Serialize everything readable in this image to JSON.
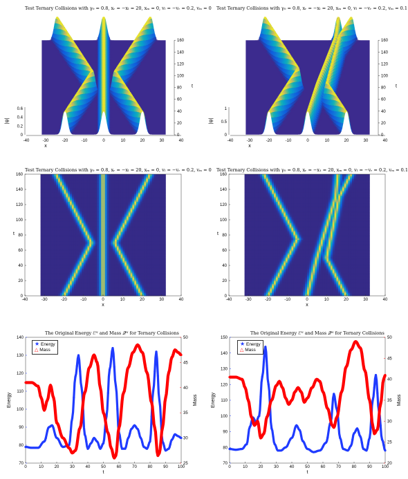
{
  "chart_data": [
    {
      "id": "surf_a",
      "type": "surface3d",
      "title": "Test Ternary Collisions with γ₀ = 0.8, xᵣ = −xₗ = 20, xₘ = 0, vₗ = −vᵣ = 0.2, vₘ = 0",
      "xlabel": "x",
      "ylabel": "t",
      "zlabel": "|ψ|",
      "xticks": [
        "-40",
        "-30",
        "-20",
        "-10",
        "0",
        "10",
        "20",
        "30",
        "40"
      ],
      "yticks": [
        "0",
        "20",
        "40",
        "60",
        "80",
        "100",
        "120",
        "140",
        "160"
      ],
      "zticks": [
        "0",
        "0.2",
        "0.4",
        "0.6"
      ]
    },
    {
      "id": "surf_b",
      "type": "surface3d",
      "title": "Test Ternary Collisions with γ₀ = 0.8, xᵣ = −xₗ = 20, xₘ = 0, vₗ = −vᵣ = 0.2, vₘ = 0.1",
      "xlabel": "x",
      "ylabel": "t",
      "zlabel": "|ψ|",
      "xticks": [
        "-40",
        "-30",
        "-20",
        "-10",
        "0",
        "10",
        "20",
        "30",
        "40"
      ],
      "yticks": [
        "0",
        "20",
        "40",
        "60",
        "80",
        "100",
        "120",
        "140",
        "160"
      ],
      "zticks": [
        "0",
        "0.5",
        "1"
      ]
    },
    {
      "id": "heat_a",
      "type": "heatmap",
      "title": "Test Ternary Collisions with γ₀ = 0.8, xᵣ = −xₗ = 20, xₘ = 0, vₗ = −vᵣ = 0.2, vₘ = 0",
      "xlabel": "x",
      "ylabel": "t",
      "xticks": [
        "-40",
        "-30",
        "-20",
        "-10",
        "0",
        "10",
        "20",
        "30",
        "40"
      ],
      "yticks": [
        "0",
        "20",
        "40",
        "60",
        "80",
        "100",
        "120",
        "140",
        "160"
      ]
    },
    {
      "id": "heat_b",
      "type": "heatmap",
      "title": "Test Ternary Collisions with γ₀ = 0.8, xᵣ = −x₁ = 20, xₘ = 0, vₗ = −vᵣ = 0.2, vₘ = 0.1",
      "xlabel": "x",
      "ylabel": "t",
      "xticks": [
        "-40",
        "-30",
        "-20",
        "-10",
        "0",
        "10",
        "20",
        "30",
        "40"
      ],
      "yticks": [
        "0",
        "20",
        "40",
        "60",
        "80",
        "100",
        "120",
        "140",
        "160"
      ]
    },
    {
      "id": "line_a",
      "type": "line",
      "title": "The Original Energy ℰᴺ and Mass 𝒬ᴺ for Ternary Collisions",
      "xlabel": "t",
      "ylabel_left": "Energy",
      "ylabel_right": "Mass",
      "xlim": [
        0,
        100
      ],
      "ylim_left": [
        70,
        140
      ],
      "ylim_right": [
        25,
        50
      ],
      "xticks": [
        "0",
        "10",
        "20",
        "30",
        "40",
        "50",
        "60",
        "70",
        "80",
        "90",
        "100"
      ],
      "yticks_left": [
        "70",
        "80",
        "90",
        "100",
        "110",
        "120",
        "130",
        "140"
      ],
      "yticks_right": [
        "25",
        "30",
        "35",
        "40",
        "45",
        "50"
      ],
      "legend": [
        "Energy",
        "Mass"
      ],
      "series": [
        {
          "name": "Energy",
          "axis": "left",
          "color": "#1f3bff",
          "points": [
            [
              0,
              79
            ],
            [
              4,
              78.5
            ],
            [
              8,
              78.5
            ],
            [
              12,
              82
            ],
            [
              15,
              90
            ],
            [
              17,
              91
            ],
            [
              20,
              84
            ],
            [
              24,
              79
            ],
            [
              28,
              80
            ],
            [
              30,
              95
            ],
            [
              32,
              118
            ],
            [
              34,
              130
            ],
            [
              36,
              112
            ],
            [
              38,
              86
            ],
            [
              40,
              78
            ],
            [
              42,
              81
            ],
            [
              44,
              84
            ],
            [
              46,
              82
            ],
            [
              48,
              78
            ],
            [
              50,
              81
            ],
            [
              52,
              96
            ],
            [
              54,
              122
            ],
            [
              56,
              134
            ],
            [
              58,
              113
            ],
            [
              60,
              87
            ],
            [
              62,
              78
            ],
            [
              64,
              78
            ],
            [
              66,
              84
            ],
            [
              68,
              89
            ],
            [
              70,
              91
            ],
            [
              72,
              89
            ],
            [
              74,
              84
            ],
            [
              76,
              79
            ],
            [
              78,
              78
            ],
            [
              80,
              82
            ],
            [
              82,
              110
            ],
            [
              84,
              132
            ],
            [
              86,
              105
            ],
            [
              88,
              82
            ],
            [
              90,
              77
            ],
            [
              92,
              78
            ],
            [
              94,
              83
            ],
            [
              96,
              86
            ],
            [
              98,
              85
            ],
            [
              100,
              84
            ]
          ]
        },
        {
          "name": "Mass",
          "axis": "right",
          "color": "#ff0000",
          "points": [
            [
              0,
              41
            ],
            [
              4,
              41
            ],
            [
              8,
              40.3
            ],
            [
              10,
              38
            ],
            [
              12,
              35.5
            ],
            [
              14,
              37.5
            ],
            [
              16,
              40.5
            ],
            [
              18,
              38
            ],
            [
              20,
              33
            ],
            [
              24,
              30
            ],
            [
              28,
              28
            ],
            [
              30,
              27
            ],
            [
              32,
              27.5
            ],
            [
              35,
              32
            ],
            [
              38,
              39
            ],
            [
              41,
              44
            ],
            [
              44,
              46.5
            ],
            [
              46,
              45
            ],
            [
              48,
              40
            ],
            [
              50,
              35
            ],
            [
              53,
              31
            ],
            [
              55,
              28
            ],
            [
              57,
              26
            ],
            [
              58,
              26.5
            ],
            [
              60,
              32
            ],
            [
              63,
              39
            ],
            [
              66,
              44
            ],
            [
              69,
              47
            ],
            [
              72,
              48.5
            ],
            [
              75,
              47
            ],
            [
              78,
              43
            ],
            [
              81,
              37
            ],
            [
              83,
              32
            ],
            [
              85,
              26.5
            ],
            [
              86,
              27
            ],
            [
              88,
              32
            ],
            [
              90,
              38
            ],
            [
              92,
              43
            ],
            [
              94,
              46
            ],
            [
              96,
              47.5
            ],
            [
              98,
              47
            ],
            [
              100,
              46.5
            ]
          ]
        }
      ]
    },
    {
      "id": "line_b",
      "type": "line",
      "title": "The Original Energy ℰᴺ and Mass 𝒬ᴺ for Ternary Collisions",
      "xlabel": "t",
      "ylabel_left": "Energy",
      "ylabel_right": "Mass",
      "xlim": [
        0,
        100
      ],
      "ylim_left": [
        70,
        150
      ],
      "ylim_right": [
        20,
        50
      ],
      "xticks": [
        "0",
        "10",
        "20",
        "30",
        "40",
        "50",
        "60",
        "70",
        "80",
        "90",
        "100"
      ],
      "yticks_left": [
        "70",
        "80",
        "90",
        "100",
        "110",
        "120",
        "130",
        "140",
        "150"
      ],
      "yticks_right": [
        "20",
        "25",
        "30",
        "35",
        "40",
        "45",
        "50"
      ],
      "legend": [
        "Energy",
        "Mass"
      ],
      "series": [
        {
          "name": "Energy",
          "axis": "left",
          "color": "#1f3bff",
          "points": [
            [
              0,
              79
            ],
            [
              4,
              78.5
            ],
            [
              8,
              79
            ],
            [
              11,
              82
            ],
            [
              13,
              93
            ],
            [
              15,
              99
            ],
            [
              17,
              96
            ],
            [
              19,
              100
            ],
            [
              21,
              125
            ],
            [
              23,
              144
            ],
            [
              25,
              120
            ],
            [
              27,
              92
            ],
            [
              29,
              82
            ],
            [
              31,
              78
            ],
            [
              33,
              78
            ],
            [
              36,
              80
            ],
            [
              40,
              86
            ],
            [
              43,
              94
            ],
            [
              45,
              91
            ],
            [
              47,
              84
            ],
            [
              50,
              79
            ],
            [
              54,
              77
            ],
            [
              58,
              78
            ],
            [
              62,
              83
            ],
            [
              65,
              96
            ],
            [
              67,
              114
            ],
            [
              69,
              104
            ],
            [
              71,
              86
            ],
            [
              73,
              79
            ],
            [
              76,
              78
            ],
            [
              78,
              81
            ],
            [
              80,
              89
            ],
            [
              82,
              92
            ],
            [
              84,
              87
            ],
            [
              86,
              79
            ],
            [
              88,
              78
            ],
            [
              90,
              86
            ],
            [
              92,
              110
            ],
            [
              94,
              126
            ],
            [
              96,
              103
            ],
            [
              98,
              85
            ],
            [
              100,
              78
            ]
          ]
        },
        {
          "name": "Mass",
          "axis": "right",
          "color": "#ff0000",
          "points": [
            [
              0,
              40.5
            ],
            [
              4,
              40.5
            ],
            [
              8,
              40
            ],
            [
              10,
              38
            ],
            [
              12,
              35
            ],
            [
              14,
              31
            ],
            [
              16,
              29
            ],
            [
              18,
              30
            ],
            [
              20,
              26
            ],
            [
              22,
              27
            ],
            [
              24,
              31
            ],
            [
              27,
              35
            ],
            [
              30,
              38.5
            ],
            [
              32,
              39.5
            ],
            [
              34,
              38
            ],
            [
              36,
              35.5
            ],
            [
              38,
              34
            ],
            [
              40,
              35
            ],
            [
              42,
              37
            ],
            [
              44,
              38
            ],
            [
              46,
              37
            ],
            [
              48,
              34.5
            ],
            [
              50,
              35.5
            ],
            [
              53,
              38
            ],
            [
              56,
              40
            ],
            [
              58,
              39.5
            ],
            [
              60,
              37
            ],
            [
              63,
              33
            ],
            [
              66,
              29
            ],
            [
              67,
              28.5
            ],
            [
              69,
              31
            ],
            [
              72,
              37
            ],
            [
              75,
              43
            ],
            [
              78,
              47
            ],
            [
              81,
              49
            ],
            [
              84,
              47.5
            ],
            [
              87,
              42
            ],
            [
              90,
              35
            ],
            [
              92,
              29
            ],
            [
              93,
              27
            ],
            [
              95,
              28
            ],
            [
              97,
              34
            ],
            [
              99,
              40
            ],
            [
              100,
              41
            ]
          ]
        }
      ]
    }
  ]
}
